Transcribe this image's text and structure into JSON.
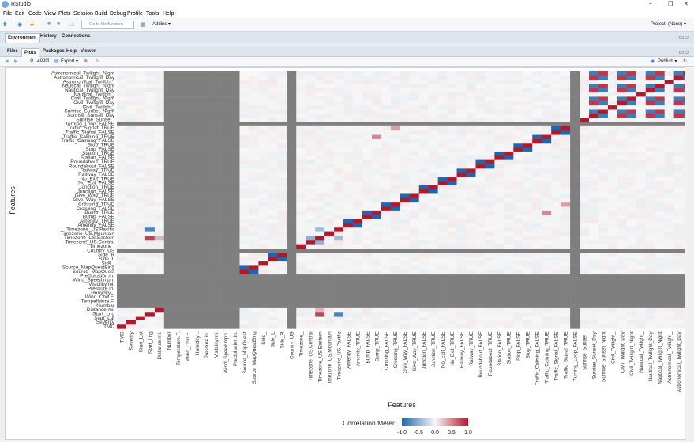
{
  "window": {
    "title": "RStudio",
    "controls": [
      "–",
      "❐",
      "✕"
    ]
  },
  "menu": [
    "File",
    "Edit",
    "Code",
    "View",
    "Plots",
    "Session",
    "Build",
    "Debug",
    "Profile",
    "Tools",
    "Help"
  ],
  "toolbar": {
    "goto_placeholder": "Go to file/function",
    "addins_label": "Addins ▾",
    "project_label": "Project: (None) ▾"
  },
  "pane_top": {
    "tabs": [
      "Environment",
      "History",
      "Connections"
    ],
    "active": "Environment"
  },
  "pane_bottom": {
    "tabs": [
      "Files",
      "Plots",
      "Packages",
      "Help",
      "Viewer"
    ],
    "active": "Plots",
    "plot_toolbar": {
      "zoom": "Zoom",
      "export": "Export ▾",
      "publish": "Publish ▾"
    }
  },
  "chart_data": {
    "type": "heatmap",
    "title": "",
    "xlabel": "Features",
    "ylabel": "Features",
    "legend_title": "Correlation Meter",
    "legend_ticks": [
      "-1.0",
      "-0.5",
      "0.0",
      "0.5",
      "1.0"
    ],
    "color_scale": {
      "low": "#2166ac",
      "mid": "#f7f7f7",
      "high": "#b2182b",
      "na": "#7f7f7f"
    },
    "features": [
      "TMC",
      "Severity",
      "Start_Lat",
      "Start_Lng",
      "Distance.mi.",
      "Number",
      "Temperature.F.",
      "Wind_Chill.F.",
      "Humidity...",
      "Pressure.in.",
      "Visibility.mi.",
      "Wind_Speed.mph.",
      "Precipitation.in.",
      "Source_MapQuest",
      "Source_MapQuestBing",
      "Side_",
      "Side_L",
      "Side_R",
      "Country_US",
      "Timezone_",
      "Timezone_US.Central",
      "Timezone_US.Eastern",
      "Timezone_US.Mountain",
      "Timezone_US.Pacific",
      "Amenity_FALSE",
      "Amenity_TRUE",
      "Bump_FALSE",
      "Bump_TRUE",
      "Crossing_FALSE",
      "Crossing_TRUE",
      "Give_Way_FALSE",
      "Give_Way_TRUE",
      "Junction_FALSE",
      "Junction_TRUE",
      "No_Exit_FALSE",
      "No_Exit_TRUE",
      "Railway_FALSE",
      "Railway_TRUE",
      "Roundabout_FALSE",
      "Roundabout_TRUE",
      "Station_FALSE",
      "Station_TRUE",
      "Stop_FALSE",
      "Stop_TRUE",
      "Traffic_Calming_FALSE",
      "Traffic_Calming_TRUE",
      "Traffic_Signal_FALSE",
      "Traffic_Signal_TRUE",
      "Turning_Loop_FALSE",
      "Sunrise_Sunset_",
      "Sunrise_Sunset_Day",
      "Sunrise_Sunset_Night",
      "Civil_Twilight_",
      "Civil_Twilight_Day",
      "Civil_Twilight_Night",
      "Nautical_Twilight_",
      "Nautical_Twilight_Day",
      "Nautical_Twilight_Night",
      "Astronomical_Twilight_",
      "Astronomical_Twilight_Day",
      "Astronomical_Twilight_Night"
    ],
    "na_features": [
      "Number",
      "Temperature.F.",
      "Wind_Chill.F.",
      "Humidity...",
      "Pressure.in.",
      "Visibility.mi.",
      "Wind_Speed.mph.",
      "Precipitation.in.",
      "Country_US",
      "Turning_Loop_FALSE"
    ],
    "diagonal": 1.0,
    "strong_pairs": [
      {
        "a": "Source_MapQuest",
        "b": "Source_MapQuestBing",
        "value": -1.0
      },
      {
        "a": "Side_L",
        "b": "Side_R",
        "value": -1.0
      },
      {
        "a": "Timezone_US.Central",
        "b": "Timezone_US.Eastern",
        "value": -0.5
      },
      {
        "a": "Timezone_US.Eastern",
        "b": "Timezone_US.Pacific",
        "value": -0.4
      },
      {
        "a": "Amenity_FALSE",
        "b": "Amenity_TRUE",
        "value": -1.0
      },
      {
        "a": "Bump_FALSE",
        "b": "Bump_TRUE",
        "value": -1.0
      },
      {
        "a": "Crossing_FALSE",
        "b": "Crossing_TRUE",
        "value": -1.0
      },
      {
        "a": "Give_Way_FALSE",
        "b": "Give_Way_TRUE",
        "value": -1.0
      },
      {
        "a": "Junction_FALSE",
        "b": "Junction_TRUE",
        "value": -1.0
      },
      {
        "a": "No_Exit_FALSE",
        "b": "No_Exit_TRUE",
        "value": -1.0
      },
      {
        "a": "Railway_FALSE",
        "b": "Railway_TRUE",
        "value": -1.0
      },
      {
        "a": "Roundabout_FALSE",
        "b": "Roundabout_TRUE",
        "value": -1.0
      },
      {
        "a": "Station_FALSE",
        "b": "Station_TRUE",
        "value": -1.0
      },
      {
        "a": "Stop_FALSE",
        "b": "Stop_TRUE",
        "value": -1.0
      },
      {
        "a": "Traffic_Calming_FALSE",
        "b": "Traffic_Calming_TRUE",
        "value": -1.0
      },
      {
        "a": "Traffic_Signal_FALSE",
        "b": "Traffic_Signal_TRUE",
        "value": -1.0
      },
      {
        "a": "Crossing_TRUE",
        "b": "Traffic_Signal_TRUE",
        "value": 0.4
      },
      {
        "a": "Bump_TRUE",
        "b": "Traffic_Calming_TRUE",
        "value": 0.5
      },
      {
        "a": "Start_Lng",
        "b": "Timezone_US.Pacific",
        "value": -0.8
      },
      {
        "a": "Start_Lng",
        "b": "Timezone_US.Eastern",
        "value": 0.8
      },
      {
        "a": "Distance.mi.",
        "b": "Timezone_US.Eastern",
        "value": 0.3
      }
    ],
    "twilight_block": {
      "features": [
        "Sunrise_Sunset_Day",
        "Sunrise_Sunset_Night",
        "Civil_Twilight_Day",
        "Civil_Twilight_Night",
        "Nautical_Twilight_Day",
        "Nautical_Twilight_Night",
        "Astronomical_Twilight_Day",
        "Astronomical_Twilight_Night"
      ],
      "day_day": 0.85,
      "night_night": 0.85,
      "day_night": -0.85,
      "blank_level": 0.0
    }
  }
}
